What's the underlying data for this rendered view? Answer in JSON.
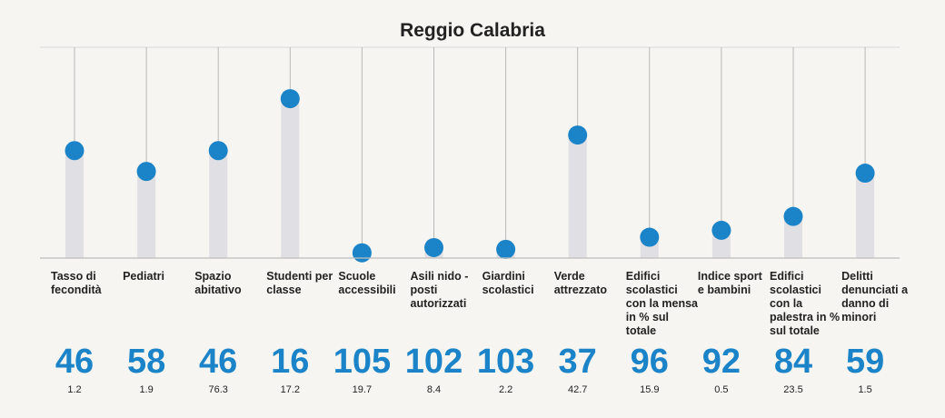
{
  "chart_data": {
    "type": "lollipop",
    "title": "Reggio Calabria",
    "ylim": [
      0,
      107
    ],
    "grid": false,
    "legend": "none",
    "colors": {
      "dot": "#1b84c8",
      "bar": "#e0dfe3",
      "stem": "#b9b9b9",
      "rank": "#1b84c8",
      "text": "#222222",
      "background": "#f6f5f1"
    },
    "categories": [
      "Tasso di fecondità",
      "Pediatri",
      "Spazio abitativo",
      "Studenti per classe",
      "Scuole accessibili",
      "Asili nido - posti autorizzati",
      "Giardini scolastici",
      "Verde attrezzato",
      "Edifici scolastici con la mensa in % sul totale",
      "Indice sport e bambini",
      "Edifici scolastici con la palestra in % sul totale",
      "Delitti denunciati a danno di minori"
    ],
    "series": [
      {
        "values": [
          46,
          58,
          46,
          16,
          105,
          102,
          103,
          37,
          96,
          92,
          84,
          59
        ]
      }
    ],
    "secondary_values": [
      "1.2",
      "1.9",
      "76.3",
      "17.2",
      "19.7",
      "8.4",
      "2.2",
      "42.7",
      "15.9",
      "0.5",
      "23.5",
      "1.5"
    ]
  }
}
